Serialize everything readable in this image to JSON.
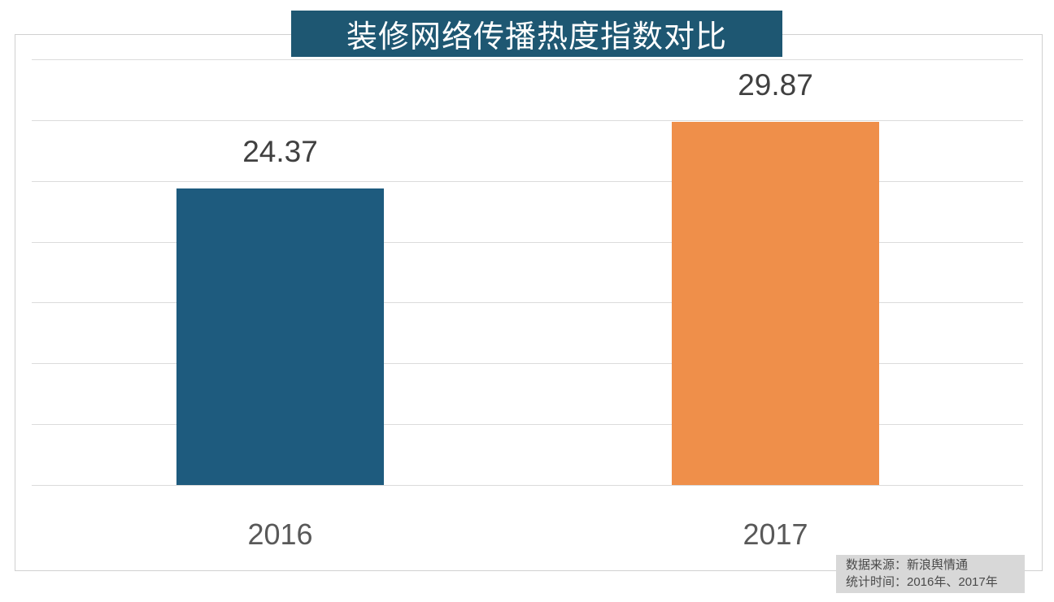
{
  "chart_data": {
    "type": "bar",
    "title": "装修网络传播热度指数对比",
    "categories": [
      "2016",
      "2017"
    ],
    "values": [
      24.37,
      29.87
    ],
    "xlabel": "",
    "ylabel": "",
    "ylim": [
      0,
      35
    ],
    "grid_step": 5,
    "grid": true,
    "legend_position": "none",
    "bar_colors": [
      "#1E5B7E",
      "#EF8F4A"
    ],
    "source_note": "数据来源：新浪舆情通",
    "period_note": "统计时间：2016年、2017年"
  },
  "colors": {
    "title_bg": "#1E5772",
    "title_text": "#FFFFFF",
    "value_label": "#404040",
    "category_label": "#595959",
    "gridline": "#DBDBDB",
    "plot_border": "#D0D0D0",
    "source_bg": "#D8D8D8",
    "source_text": "#4A4A4A"
  }
}
